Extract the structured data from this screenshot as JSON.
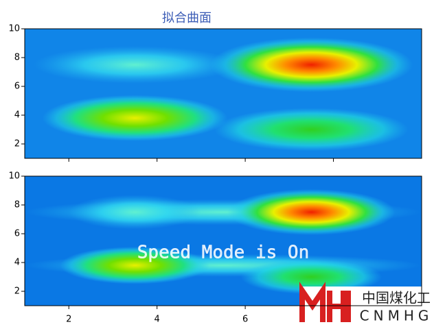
{
  "chart_data": [
    {
      "type": "heatmap",
      "title": "拟合曲面",
      "xlim": [
        1,
        10
      ],
      "ylim": [
        1,
        10
      ],
      "xticks": [
        2,
        4,
        6,
        8
      ],
      "yticks": [
        2,
        4,
        6,
        8,
        10
      ]
    },
    {
      "type": "heatmap",
      "xlim": [
        1,
        10
      ],
      "ylim": [
        1,
        10
      ],
      "xticks": [
        2,
        4,
        6
      ],
      "yticks": [
        2,
        4,
        6,
        8,
        10
      ]
    }
  ],
  "overlay": {
    "watermark": "Speed Mode is On",
    "logo_cn": "中国煤化工",
    "logo_en": "CNMHG"
  }
}
